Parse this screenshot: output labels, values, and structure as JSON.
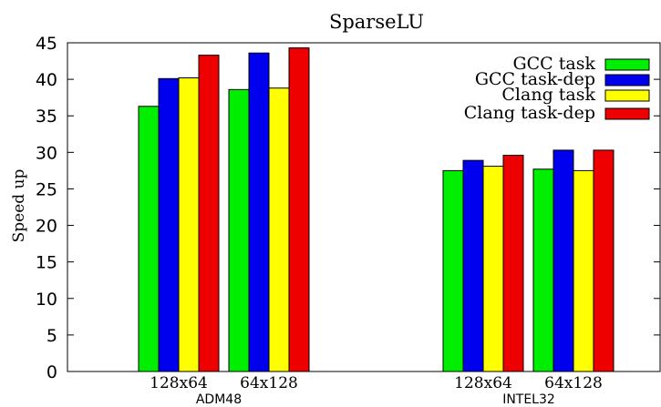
{
  "chart_data": {
    "type": "bar",
    "title": "SparseLU",
    "xlabel": "",
    "ylabel": "Speed up",
    "ylim": [
      0,
      45
    ],
    "yticks": [
      "0",
      "5",
      "10",
      "15",
      "20",
      "25",
      "30",
      "35",
      "40",
      "45"
    ],
    "grid": false,
    "legend_position": "top-right",
    "groups": [
      {
        "name": "ADM48",
        "categories": [
          "128x64",
          "64x128"
        ]
      },
      {
        "name": "INTEL32",
        "categories": [
          "128x64",
          "64x128"
        ]
      }
    ],
    "categories": [
      "128x64",
      "64x128",
      "128x64",
      "64x128"
    ],
    "series": [
      {
        "name": "GCC task",
        "color": "#00ee00",
        "values": [
          36.3,
          38.6,
          27.5,
          27.7
        ]
      },
      {
        "name": "GCC task-dep",
        "color": "#0000ee",
        "values": [
          40.1,
          43.6,
          28.9,
          30.3
        ]
      },
      {
        "name": "Clang task",
        "color": "#ffff00",
        "values": [
          40.2,
          38.8,
          28.1,
          27.5
        ]
      },
      {
        "name": "Clang task-dep",
        "color": "#ee0000",
        "values": [
          43.3,
          44.3,
          29.6,
          30.3
        ]
      }
    ]
  }
}
